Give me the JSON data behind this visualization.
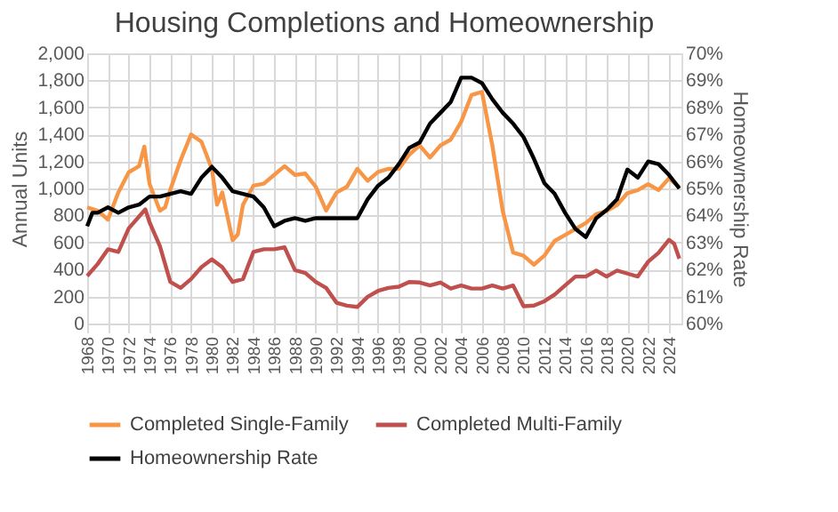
{
  "chart_data": {
    "type": "line",
    "title": "Housing Completions and Homeownership",
    "ylabel": "Annual Units",
    "y2label": "Homeownership Rate",
    "xlim": [
      1968,
      2025.2
    ],
    "xticks": [
      1968,
      1970,
      1972,
      1974,
      1976,
      1978,
      1980,
      1982,
      1984,
      1986,
      1988,
      1990,
      1992,
      1994,
      1996,
      1998,
      2000,
      2002,
      2004,
      2006,
      2008,
      2010,
      2012,
      2014,
      2016,
      2018,
      2020,
      2022,
      2024
    ],
    "ylim": [
      0,
      2000
    ],
    "yticks": [
      0,
      200,
      400,
      600,
      800,
      {
        "value": 1000,
        "label": "1,000"
      },
      {
        "value": 1200,
        "label": "1,200"
      },
      {
        "value": 1400,
        "label": "1,400"
      },
      {
        "value": 1600,
        "label": "1,600"
      },
      {
        "value": 1800,
        "label": "1,800"
      },
      {
        "value": 2000,
        "label": "2,000"
      }
    ],
    "y2lim": [
      60,
      70
    ],
    "y2ticks": [
      {
        "value": 60,
        "label": "60%"
      },
      {
        "value": 61,
        "label": "61%"
      },
      {
        "value": 62,
        "label": "62%"
      },
      {
        "value": 63,
        "label": "63%"
      },
      {
        "value": 64,
        "label": "64%"
      },
      {
        "value": 65,
        "label": "65%"
      },
      {
        "value": 66,
        "label": "66%"
      },
      {
        "value": 67,
        "label": "67%"
      },
      {
        "value": 68,
        "label": "68%"
      },
      {
        "value": 69,
        "label": "69%"
      },
      {
        "value": 70,
        "label": "70%"
      }
    ],
    "grid": true,
    "legend": "bottom",
    "line_style": "solid",
    "marker": "none",
    "series": [
      {
        "name": "Completed Single-Family",
        "color": "#f79646",
        "x": [
          1968,
          1969,
          1970,
          1971,
          1972,
          1973,
          1973.5,
          1974,
          1975,
          1975.5,
          1976,
          1977,
          1978,
          1979,
          1980,
          1980.5,
          1981,
          1982,
          1982.5,
          1983,
          1984,
          1985,
          1986,
          1987,
          1988,
          1989,
          1990,
          1991,
          1992,
          1993,
          1994,
          1995,
          1996,
          1997,
          1998,
          1999,
          2000,
          2001,
          2002,
          2003,
          2004,
          2005,
          2006,
          2007,
          2008,
          2009,
          2010,
          2011,
          2012,
          2013,
          2014,
          2015,
          2016,
          2017,
          2018,
          2019,
          2020,
          2021,
          2022,
          2023,
          2024,
          2025
        ],
        "values": [
          860,
          835,
          770,
          970,
          1120,
          1165,
          1310,
          1035,
          835,
          860,
          990,
          1210,
          1400,
          1345,
          1145,
          880,
          970,
          617,
          660,
          880,
          1020,
          1035,
          1100,
          1165,
          1100,
          1110,
          1013,
          837,
          970,
          1013,
          1145,
          1057,
          1123,
          1145,
          1145,
          1250,
          1318,
          1229,
          1318,
          1362,
          1494,
          1692,
          1714,
          1318,
          833,
          525,
          502,
          436,
          502,
          612,
          656,
          700,
          744,
          810,
          833,
          877,
          965,
          988,
          1031,
          988,
          1075,
          1010
        ]
      },
      {
        "name": "Completed Multi-Family",
        "color": "#c0504d",
        "x": [
          1968,
          1969,
          1970,
          1971,
          1972,
          1973,
          1973.6,
          1974,
          1975,
          1976,
          1977,
          1978,
          1979,
          1980,
          1981,
          1982,
          1983,
          1984,
          1985,
          1986,
          1987,
          1988,
          1989,
          1990,
          1991,
          1992,
          1993,
          1994,
          1995,
          1996,
          1997,
          1998,
          1999,
          2000,
          2001,
          2002,
          2003,
          2004,
          2005,
          2006,
          2007,
          2008,
          2009,
          2010,
          2011,
          2012,
          2013,
          2014,
          2015,
          2016,
          2017,
          2018,
          2019,
          2020,
          2021,
          2022,
          2023,
          2024,
          2024.5,
          2025
        ],
        "values": [
          352,
          440,
          550,
          530,
          705,
          793,
          845,
          750,
          573,
          308,
          264,
          330,
          418,
          476,
          418,
          308,
          330,
          530,
          550,
          550,
          564,
          396,
          374,
          308,
          264,
          154,
          132,
          123,
          198,
          242,
          264,
          273,
          308,
          304,
          282,
          304,
          259,
          282,
          259,
          259,
          282,
          259,
          282,
          128,
          133,
          165,
          215,
          282,
          348,
          348,
          392,
          348,
          392,
          370,
          348,
          458,
          524,
          620,
          590,
          480
        ]
      },
      {
        "name": "Homeownership Rate",
        "color": "#000000",
        "axis": "y2",
        "x": [
          1968,
          1968.5,
          1969,
          1970,
          1971,
          1972,
          1973,
          1974,
          1975,
          1976,
          1977,
          1978,
          1979,
          1980,
          1981,
          1982,
          1983,
          1984,
          1985,
          1986,
          1987,
          1988,
          1989,
          1990,
          1991,
          1992,
          1993,
          1994,
          1995,
          1996,
          1997,
          1998,
          1999,
          2000,
          2001,
          2002,
          2003,
          2004,
          2005,
          2006,
          2007,
          2008,
          2009,
          2010,
          2011,
          2012,
          2013,
          2014,
          2015,
          2016,
          2017,
          2018,
          2019,
          2020,
          2021,
          2022,
          2023,
          2024,
          2025
        ],
        "values": [
          63.6,
          64.1,
          64.1,
          64.3,
          64.1,
          64.3,
          64.4,
          64.7,
          64.7,
          64.8,
          64.9,
          64.8,
          65.4,
          65.8,
          65.4,
          64.9,
          64.8,
          64.7,
          64.3,
          63.6,
          63.8,
          63.9,
          63.8,
          63.9,
          63.9,
          63.9,
          63.9,
          63.9,
          64.6,
          65.1,
          65.4,
          65.9,
          66.5,
          66.7,
          67.4,
          67.8,
          68.2,
          69.1,
          69.1,
          68.9,
          68.3,
          67.8,
          67.4,
          66.9,
          66.1,
          65.2,
          64.8,
          64.1,
          63.5,
          63.2,
          63.9,
          64.2,
          64.6,
          65.7,
          65.4,
          66.0,
          65.9,
          65.5,
          65.0
        ]
      }
    ]
  }
}
